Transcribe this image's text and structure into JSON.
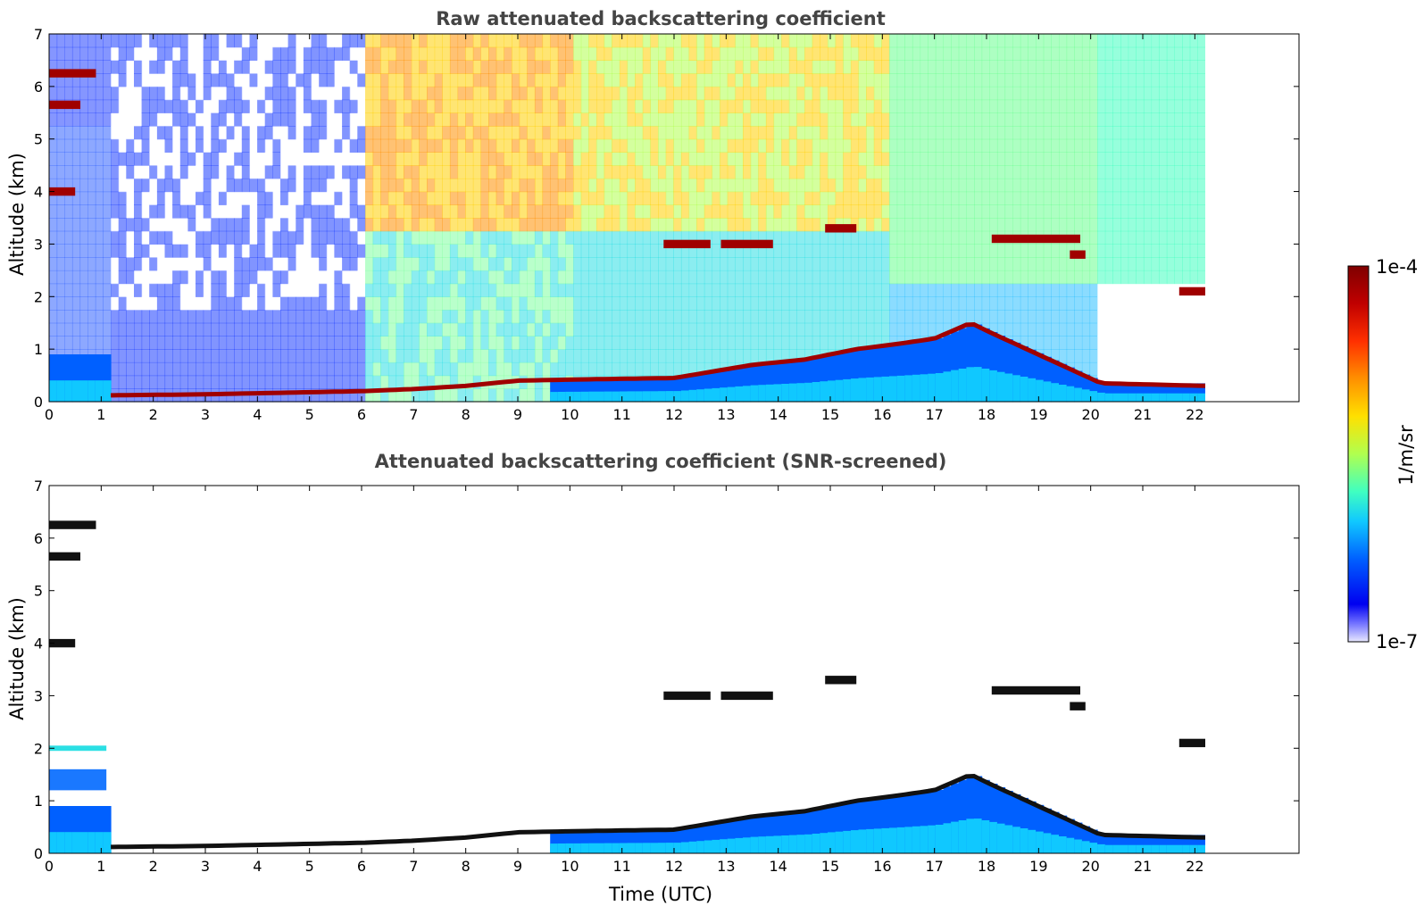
{
  "chart_data": [
    {
      "type": "heatmap",
      "title": "Raw attenuated backscattering coefficient",
      "xlabel": "",
      "ylabel": "Altitude (km)",
      "xlim": [
        0,
        24
      ],
      "ylim": [
        0,
        7
      ],
      "data_xmax": 22.2,
      "xticks": [
        "0",
        "1",
        "2",
        "3",
        "4",
        "5",
        "6",
        "7",
        "8",
        "9",
        "10",
        "11",
        "12",
        "13",
        "14",
        "15",
        "16",
        "17",
        "18",
        "19",
        "20",
        "21",
        "22"
      ],
      "yticks": [
        "0",
        "1",
        "2",
        "3",
        "4",
        "5",
        "6",
        "7"
      ],
      "features": {
        "boundary_layer_top_km": [
          {
            "t": 1.1,
            "z": 0.12
          },
          {
            "t": 3,
            "z": 0.14
          },
          {
            "t": 5,
            "z": 0.18
          },
          {
            "t": 6,
            "z": 0.2
          },
          {
            "t": 7,
            "z": 0.24
          },
          {
            "t": 8,
            "z": 0.3
          },
          {
            "t": 9,
            "z": 0.4
          },
          {
            "t": 10,
            "z": 0.42
          },
          {
            "t": 12,
            "z": 0.45
          },
          {
            "t": 13.5,
            "z": 0.7
          },
          {
            "t": 14.5,
            "z": 0.8
          },
          {
            "t": 15.5,
            "z": 1.0
          },
          {
            "t": 16.3,
            "z": 1.1
          },
          {
            "t": 17,
            "z": 1.2
          },
          {
            "t": 17.7,
            "z": 1.5
          },
          {
            "t": 18,
            "z": 1.35
          },
          {
            "t": 20.2,
            "z": 0.35
          },
          {
            "t": 22.2,
            "z": 0.3
          }
        ],
        "cloud_layers_km": [
          {
            "t0": 0.0,
            "t1": 0.9,
            "z": 6.25
          },
          {
            "t0": 0.0,
            "t1": 0.6,
            "z": 5.65
          },
          {
            "t0": 0.0,
            "t1": 0.5,
            "z": 4.0
          },
          {
            "t0": 11.8,
            "t1": 12.7,
            "z": 3.0
          },
          {
            "t0": 12.9,
            "t1": 13.9,
            "z": 3.0
          },
          {
            "t0": 14.9,
            "t1": 15.5,
            "z": 3.3
          },
          {
            "t0": 18.1,
            "t1": 19.8,
            "z": 3.1
          },
          {
            "t0": 19.6,
            "t1": 19.9,
            "z": 2.8
          },
          {
            "t0": 21.7,
            "t1": 22.2,
            "z": 2.1
          }
        ]
      }
    },
    {
      "type": "heatmap",
      "title": "Attenuated backscattering coefficient (SNR-screened)",
      "xlabel": "Time (UTC)",
      "ylabel": "Altitude (km)",
      "xlim": [
        0,
        24
      ],
      "ylim": [
        0,
        7
      ],
      "data_xmax": 22.2,
      "xticks": [
        "0",
        "1",
        "2",
        "3",
        "4",
        "5",
        "6",
        "7",
        "8",
        "9",
        "10",
        "11",
        "12",
        "13",
        "14",
        "15",
        "16",
        "17",
        "18",
        "19",
        "20",
        "21",
        "22"
      ],
      "yticks": [
        "0",
        "1",
        "2",
        "3",
        "4",
        "5",
        "6",
        "7"
      ]
    }
  ],
  "colorbar": {
    "label": "1/m/sr",
    "max_label": "1e-4",
    "min_label": "1e-7",
    "colors": [
      "#7f0000",
      "#c00000",
      "#ff2a00",
      "#ff8000",
      "#ffd000",
      "#c8ff37",
      "#6aff8f",
      "#2bdfe4",
      "#00a8ff",
      "#0050ff",
      "#0000f0",
      "#8080ff",
      "#e0e0ff"
    ]
  }
}
